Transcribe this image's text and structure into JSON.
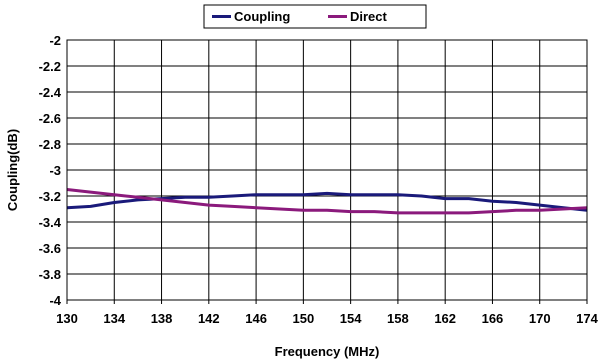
{
  "chart_data": {
    "type": "line",
    "title": "",
    "xlabel": "Frequency (MHz)",
    "ylabel": "Coupling(dB)",
    "xlim": [
      130,
      174
    ],
    "ylim": [
      -4,
      -2
    ],
    "xticks": [
      130,
      134,
      138,
      142,
      146,
      150,
      154,
      158,
      162,
      166,
      170,
      174
    ],
    "xtick_labels": [
      "130",
      "134",
      "138",
      "142",
      "146",
      "150",
      "154",
      "158",
      "162",
      "166",
      "170",
      "174"
    ],
    "yticks": [
      -2,
      -2.2,
      -2.4,
      -2.6,
      -2.8,
      -3,
      -3.2,
      -3.4,
      -3.6,
      -3.8,
      -4
    ],
    "ytick_labels": [
      "-2",
      "-2.2",
      "-2.4",
      "-2.6",
      "-2.8",
      "-3",
      "-3.2",
      "-3.4",
      "-3.6",
      "-3.8",
      "-4"
    ],
    "grid": true,
    "legend_position": "top-center",
    "x": [
      130,
      132,
      134,
      136,
      138,
      140,
      142,
      144,
      146,
      148,
      150,
      152,
      154,
      156,
      158,
      160,
      162,
      164,
      166,
      168,
      170,
      172,
      174
    ],
    "series": [
      {
        "name": "Coupling",
        "color": "#1a1a7a",
        "values": [
          -3.29,
          -3.28,
          -3.25,
          -3.23,
          -3.22,
          -3.21,
          -3.21,
          -3.2,
          -3.19,
          -3.19,
          -3.19,
          -3.18,
          -3.19,
          -3.19,
          -3.19,
          -3.2,
          -3.22,
          -3.22,
          -3.24,
          -3.25,
          -3.27,
          -3.29,
          -3.31
        ]
      },
      {
        "name": "Direct",
        "color": "#8b1a7c",
        "values": [
          -3.15,
          -3.17,
          -3.19,
          -3.21,
          -3.23,
          -3.25,
          -3.27,
          -3.28,
          -3.29,
          -3.3,
          -3.31,
          -3.31,
          -3.32,
          -3.32,
          -3.33,
          -3.33,
          -3.33,
          -3.33,
          -3.32,
          -3.31,
          -3.31,
          -3.3,
          -3.29
        ]
      }
    ]
  }
}
